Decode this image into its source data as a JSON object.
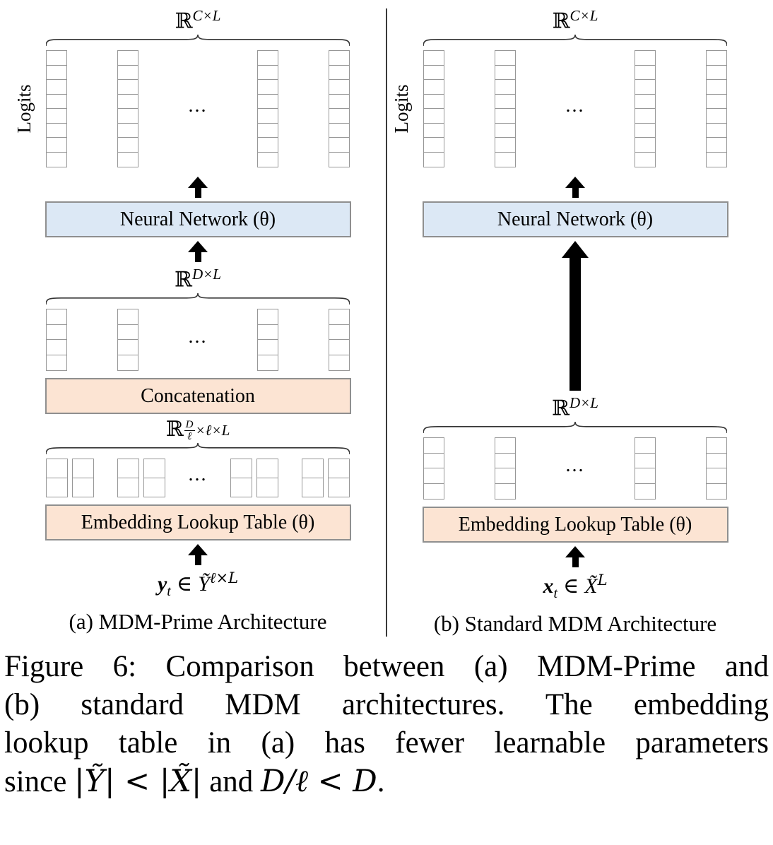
{
  "diagram": {
    "ellipsis": "...",
    "tall_cells": 8,
    "mid_cells": 4,
    "pair_cells": 2
  },
  "colors": {
    "nn-fill": "#dce8f5",
    "warm-fill": "#fce4d3",
    "box-border": "#8f8f8f",
    "cell-border": "#979797",
    "divider": "#3a3a3a"
  },
  "panel_a": {
    "logits": "Logits",
    "top_dim": {
      "base": "ℝ",
      "sup": "C×L"
    },
    "nn_box": "Neural Network (θ)",
    "mid_dim": {
      "base": "ℝ",
      "sup": "D×L"
    },
    "concat_box": "Concatenation",
    "sub_dim": {
      "base": "ℝ",
      "num": "D",
      "den": "ℓ",
      "rest": "×ℓ×L"
    },
    "embed_box": "Embedding Lookup Table (θ)",
    "input": {
      "var": "y",
      "sub": "t",
      "rel": "∈",
      "set": "Ỹ",
      "sup": "ℓ×L"
    },
    "caption": "(a) MDM-Prime Architecture"
  },
  "panel_b": {
    "logits": "Logits",
    "top_dim": {
      "base": "ℝ",
      "sup": "C×L"
    },
    "nn_box": "Neural Network (θ)",
    "mid_dim": {
      "base": "ℝ",
      "sup": "D×L"
    },
    "embed_box": "Embedding Lookup Table (θ)",
    "input": {
      "var": "x",
      "sub": "t",
      "rel": "∈",
      "set": "X̃",
      "sup": "L"
    },
    "caption": "(b) Standard MDM Architecture"
  },
  "caption": {
    "line1": "Figure 6: Comparison between (a) MDM-Prime and",
    "line2": "(b) standard MDM architectures. The embedding",
    "line3": "lookup table in (a) has fewer learnable parameters",
    "line4_pre": "since ",
    "line4_math1": "|Ỹ| < |X̃|",
    "line4_mid": " and ",
    "line4_math2": "D/ℓ < D",
    "line4_post": "."
  }
}
